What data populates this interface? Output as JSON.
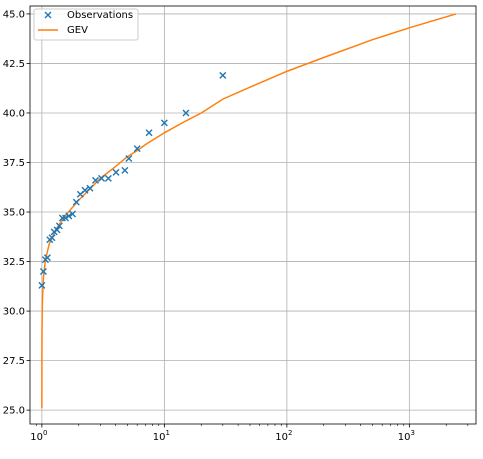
{
  "chart_data": {
    "type": "scatter",
    "xscale": "log",
    "xlim": [
      0.8,
      3500
    ],
    "ylim": [
      24.3,
      45.4
    ],
    "grid": true,
    "legend_position": "top-left",
    "colors": {
      "observations": "#1f77b4",
      "gev": "#ff7f0e",
      "grid": "#b0b0b0",
      "frame": "#000000"
    },
    "xticks": [
      {
        "value": 1,
        "base": "10",
        "exp": "0"
      },
      {
        "value": 10,
        "base": "10",
        "exp": "1"
      },
      {
        "value": 100,
        "base": "10",
        "exp": "2"
      },
      {
        "value": 1000,
        "base": "10",
        "exp": "3"
      }
    ],
    "yticks": [
      {
        "value": 25,
        "label": "25.0"
      },
      {
        "value": 27.5,
        "label": "27.5"
      },
      {
        "value": 30,
        "label": "30.0"
      },
      {
        "value": 32.5,
        "label": "32.5"
      },
      {
        "value": 35,
        "label": "35.0"
      },
      {
        "value": 37.5,
        "label": "37.5"
      },
      {
        "value": 40,
        "label": "40.0"
      },
      {
        "value": 42.5,
        "label": "42.5"
      },
      {
        "value": 45,
        "label": "45.0"
      }
    ],
    "legend": [
      {
        "label": "Observations",
        "marker": "x"
      },
      {
        "label": "GEV",
        "marker": "line"
      }
    ],
    "series": [
      {
        "name": "Observations",
        "kind": "scatter",
        "marker": "x",
        "points": [
          [
            1.0,
            31.3
          ],
          [
            1.03,
            32.0
          ],
          [
            1.07,
            32.6
          ],
          [
            1.11,
            32.7
          ],
          [
            1.16,
            33.6
          ],
          [
            1.21,
            33.7
          ],
          [
            1.26,
            34.0
          ],
          [
            1.33,
            34.1
          ],
          [
            1.39,
            34.3
          ],
          [
            1.47,
            34.7
          ],
          [
            1.56,
            34.7
          ],
          [
            1.66,
            34.8
          ],
          [
            1.78,
            34.9
          ],
          [
            1.91,
            35.5
          ],
          [
            2.06,
            35.9
          ],
          [
            2.25,
            36.1
          ],
          [
            2.47,
            36.2
          ],
          [
            2.74,
            36.6
          ],
          [
            3.07,
            36.7
          ],
          [
            3.49,
            36.7
          ],
          [
            4.03,
            37.0
          ],
          [
            4.76,
            37.1
          ],
          [
            5.13,
            37.7
          ],
          [
            6.0,
            38.2
          ],
          [
            7.5,
            39.0
          ],
          [
            10.0,
            39.5
          ],
          [
            15.0,
            40.0
          ],
          [
            30.0,
            41.9
          ]
        ]
      },
      {
        "name": "GEV",
        "kind": "line",
        "points": [
          [
            1.0,
            25.1
          ],
          [
            1.0005,
            27.4
          ],
          [
            1.002,
            29.0
          ],
          [
            1.01,
            30.5
          ],
          [
            1.03,
            31.7
          ],
          [
            1.07,
            32.6
          ],
          [
            1.15,
            33.4
          ],
          [
            1.3,
            34.1
          ],
          [
            1.5,
            34.7
          ],
          [
            1.7,
            35.1
          ],
          [
            2.0,
            35.6
          ],
          [
            2.5,
            36.2
          ],
          [
            3.0,
            36.7
          ],
          [
            4.0,
            37.3
          ],
          [
            5.0,
            37.8
          ],
          [
            6.0,
            38.1
          ],
          [
            7.0,
            38.4
          ],
          [
            10.0,
            39.0
          ],
          [
            15.0,
            39.6
          ],
          [
            20.0,
            40.0
          ],
          [
            30.0,
            40.7
          ],
          [
            50.0,
            41.3
          ],
          [
            100.0,
            42.1
          ],
          [
            200.0,
            42.8
          ],
          [
            500.0,
            43.7
          ],
          [
            1000.0,
            44.3
          ],
          [
            2400.0,
            45.0
          ]
        ]
      }
    ]
  }
}
